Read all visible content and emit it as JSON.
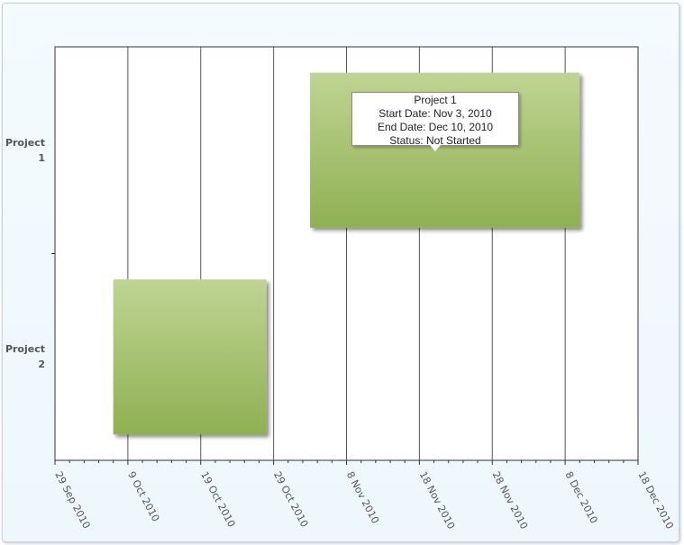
{
  "chart_data": {
    "type": "gantt",
    "categories": [
      "Project 1",
      "Project 2"
    ],
    "tasks": [
      {
        "name": "Project 1",
        "start": "2010-11-03",
        "end": "2010-12-10",
        "status": "Not Started"
      },
      {
        "name": "Project 2",
        "start": "2010-10-07",
        "end": "2010-10-28"
      }
    ],
    "x_ticks": [
      "29 Sep 2010",
      "9 Oct 2010",
      "19 Oct 2010",
      "29 Oct 2010",
      "8 Nov 2010",
      "18 Nov 2010",
      "28 Nov 2010",
      "8 Dec 2010",
      "18 Dec 2010"
    ],
    "xlim": [
      "2010-09-29",
      "2010-12-18"
    ],
    "grid": true,
    "bar_color": "#a3c06a"
  },
  "category_labels": [
    {
      "line1": "Project",
      "line2": "1"
    },
    {
      "line1": "Project",
      "line2": "2"
    }
  ],
  "tooltip": {
    "title": "Project 1",
    "start_line": "Start Date: Nov 3, 2010",
    "end_line": "End Date: Dec 10, 2010",
    "status_line": "Status: Not Started"
  }
}
